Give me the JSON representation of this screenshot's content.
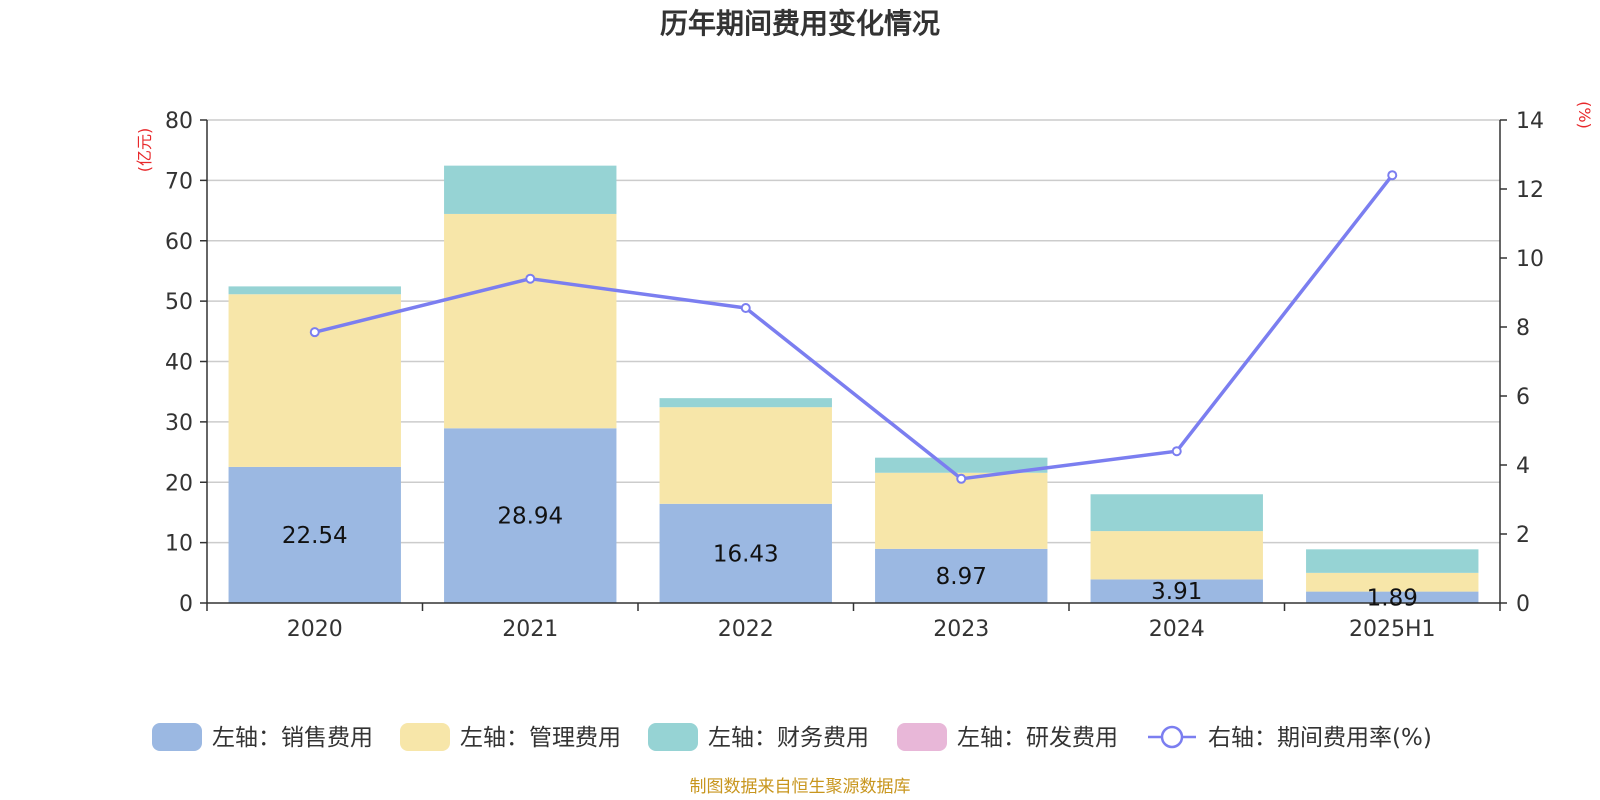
{
  "chart_data": {
    "type": "bar",
    "title": "历年期间费用变化情况",
    "categories": [
      "2020",
      "2021",
      "2022",
      "2023",
      "2024",
      "2025H1"
    ],
    "left_axis": {
      "unit": "(亿元)",
      "ylim": [
        0,
        80
      ],
      "ticks": [
        0,
        10,
        20,
        30,
        40,
        50,
        60,
        70,
        80
      ]
    },
    "right_axis": {
      "unit": "(%)",
      "ylim": [
        0,
        14
      ],
      "ticks": [
        0,
        2,
        4,
        6,
        8,
        10,
        12,
        14
      ]
    },
    "series": [
      {
        "name": "左轴：销售费用",
        "kind": "bar",
        "axis": "left",
        "color": "#9bb8e2",
        "values": [
          22.54,
          28.94,
          16.43,
          8.97,
          3.91,
          1.89
        ],
        "labels": [
          "22.54",
          "28.94",
          "16.43",
          "8.97",
          "3.91",
          "1.89"
        ]
      },
      {
        "name": "左轴：管理费用",
        "kind": "bar",
        "axis": "left",
        "color": "#f7e6a9",
        "values": [
          28.6,
          35.5,
          16.0,
          12.6,
          8.0,
          3.1
        ]
      },
      {
        "name": "左轴：财务费用",
        "kind": "bar",
        "axis": "left",
        "color": "#96d3d4",
        "values": [
          1.3,
          8.0,
          1.5,
          2.5,
          6.1,
          3.9
        ]
      },
      {
        "name": "左轴：研发费用",
        "kind": "bar",
        "axis": "left",
        "color": "#e8b7d8",
        "values": [
          0,
          0,
          0,
          0,
          0,
          0
        ]
      },
      {
        "name": "右轴：期间费用率(%)",
        "kind": "line",
        "axis": "right",
        "color": "#7b7ef0",
        "values": [
          7.85,
          9.4,
          8.55,
          3.6,
          4.4,
          12.4
        ]
      }
    ],
    "grid": true,
    "legend_position": "bottom"
  },
  "source_text": "制图数据来自恒生聚源数据库"
}
